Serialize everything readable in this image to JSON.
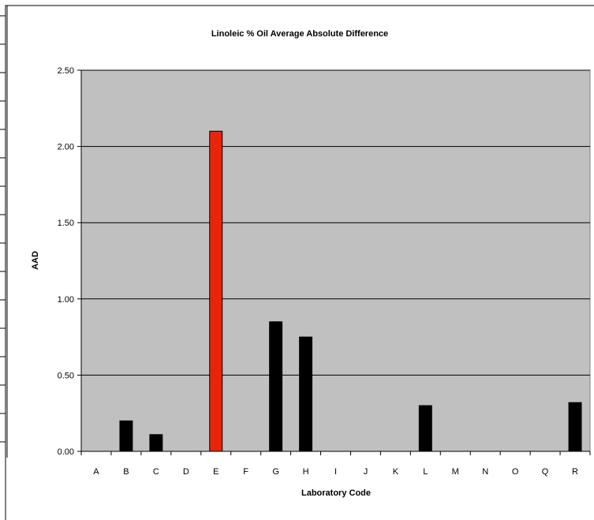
{
  "chart_data": {
    "type": "bar",
    "title": "Linoleic % Oil Average Absolute Difference",
    "xlabel": "Laboratory Code",
    "ylabel": "AAD",
    "categories": [
      "A",
      "B",
      "C",
      "D",
      "E",
      "F",
      "G",
      "H",
      "I",
      "J",
      "K",
      "L",
      "M",
      "N",
      "O",
      "Q",
      "R"
    ],
    "values": [
      0,
      0.2,
      0.11,
      0,
      2.1,
      0,
      0.85,
      0.75,
      0,
      0,
      0,
      0.3,
      0,
      0,
      0,
      0,
      0.32
    ],
    "highlight_category": "E",
    "ylim": [
      0,
      2.5
    ],
    "yticks": [
      "0.00",
      "0.50",
      "1.00",
      "1.50",
      "2.00",
      "2.50"
    ],
    "grid": "horizontal",
    "legend": "none",
    "colors": {
      "plot_background": "#c0c0c0",
      "bar": "#000000",
      "highlight_bar": "#e8240c",
      "gridline": "#000000"
    }
  }
}
